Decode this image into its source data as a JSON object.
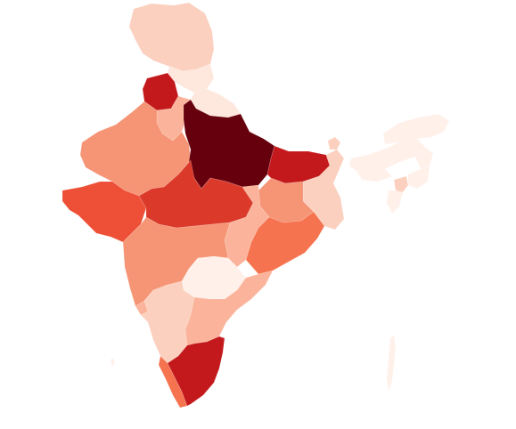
{
  "map": {
    "type": "choropleth",
    "color_scale": "reds",
    "palette": {
      "very_light": "#fee7dd",
      "light": "#fcd0bf",
      "light_medium": "#fbb49b",
      "medium": "#f59575",
      "medium_orange": "#f5734f",
      "orange_red": "#ee4f37",
      "red": "#db3a2b",
      "dark_red": "#c4191c",
      "darkest": "#67000d",
      "faint": "#fff0ea"
    },
    "regions": [
      {
        "id": "jammu-kashmir",
        "level": "light"
      },
      {
        "id": "himachal-pradesh",
        "level": "very_light"
      },
      {
        "id": "punjab",
        "level": "dark_red"
      },
      {
        "id": "uttarakhand",
        "level": "very_light"
      },
      {
        "id": "haryana",
        "level": "light_medium"
      },
      {
        "id": "rajasthan",
        "level": "medium"
      },
      {
        "id": "uttar-pradesh",
        "level": "darkest"
      },
      {
        "id": "bihar",
        "level": "dark_red"
      },
      {
        "id": "gujarat",
        "level": "orange_red"
      },
      {
        "id": "madhya-pradesh",
        "level": "red"
      },
      {
        "id": "chhattisgarh",
        "level": "light_medium"
      },
      {
        "id": "jharkhand",
        "level": "medium"
      },
      {
        "id": "west-bengal",
        "level": "light"
      },
      {
        "id": "odisha",
        "level": "medium_orange"
      },
      {
        "id": "maharashtra",
        "level": "medium"
      },
      {
        "id": "telangana",
        "level": "faint"
      },
      {
        "id": "andhra-pradesh",
        "level": "light_medium"
      },
      {
        "id": "karnataka",
        "level": "light"
      },
      {
        "id": "goa",
        "level": "light_medium"
      },
      {
        "id": "kerala",
        "level": "medium_orange"
      },
      {
        "id": "tamil-nadu",
        "level": "dark_red"
      },
      {
        "id": "sikkim",
        "level": "light"
      },
      {
        "id": "assam",
        "level": "faint"
      },
      {
        "id": "arunachal-pradesh",
        "level": "faint"
      },
      {
        "id": "nagaland",
        "level": "faint"
      },
      {
        "id": "manipur",
        "level": "faint"
      },
      {
        "id": "meghalaya",
        "level": "faint"
      },
      {
        "id": "tripura",
        "level": "light"
      },
      {
        "id": "mizoram",
        "level": "faint"
      },
      {
        "id": "andaman-nicobar",
        "level": "faint"
      },
      {
        "id": "lakshadweep",
        "level": "faint"
      }
    ]
  }
}
